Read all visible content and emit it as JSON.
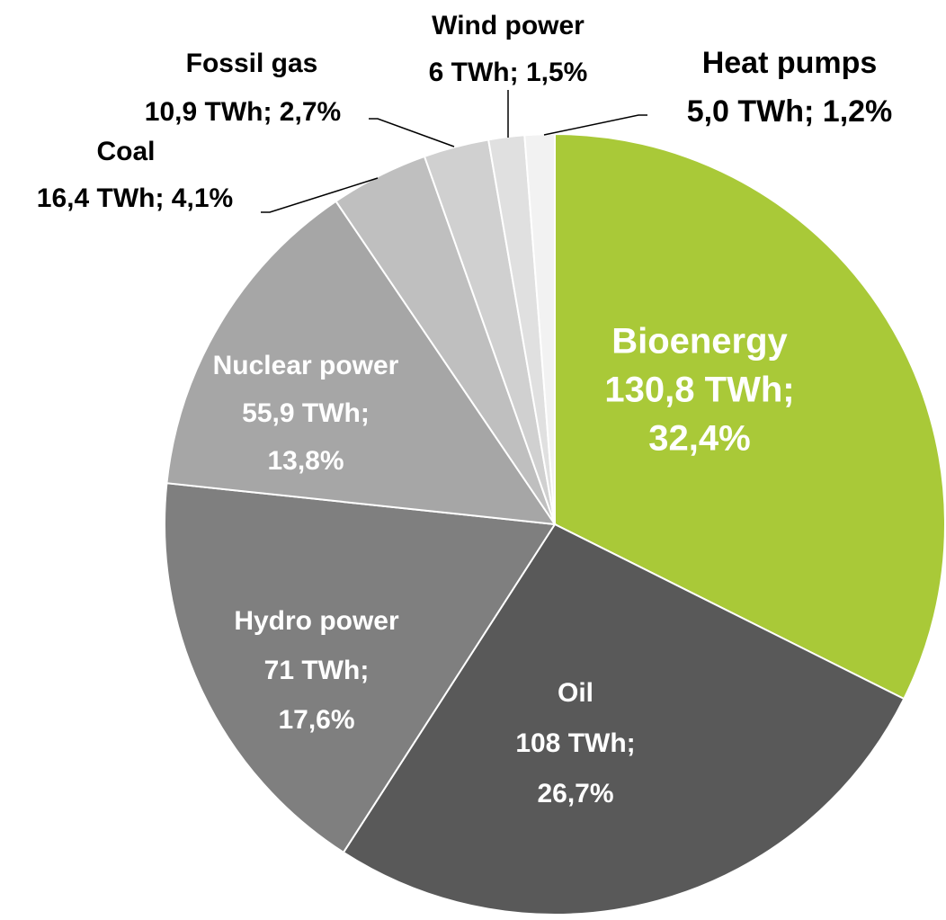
{
  "chart_data": {
    "type": "pie",
    "categories": [
      "Bioenergy",
      "Oil",
      "Hydro power",
      "Nuclear power",
      "Coal",
      "Fossil gas",
      "Wind power",
      "Heat pumps"
    ],
    "values": [
      130.8,
      108,
      71,
      55.9,
      16.4,
      10.9,
      6,
      5.0
    ],
    "value_labels": [
      [
        "130,8 TWh;",
        "32,4%"
      ],
      [
        "108 TWh;",
        "26,7%"
      ],
      [
        "71 TWh;",
        "17,6%"
      ],
      [
        "55,9 TWh;",
        "13,8%"
      ],
      [
        "16,4 TWh; 4,1%"
      ],
      [
        "10,9 TWh; 2,7%"
      ],
      [
        "6 TWh; 1,5%"
      ],
      [
        "5,0 TWh; 1,2%"
      ]
    ],
    "colors": [
      "#a9c938",
      "#595959",
      "#7f7f7f",
      "#a6a6a6",
      "#bfbfbf",
      "#d0d0d0",
      "#e0e0e0",
      "#f2f2f2"
    ]
  }
}
